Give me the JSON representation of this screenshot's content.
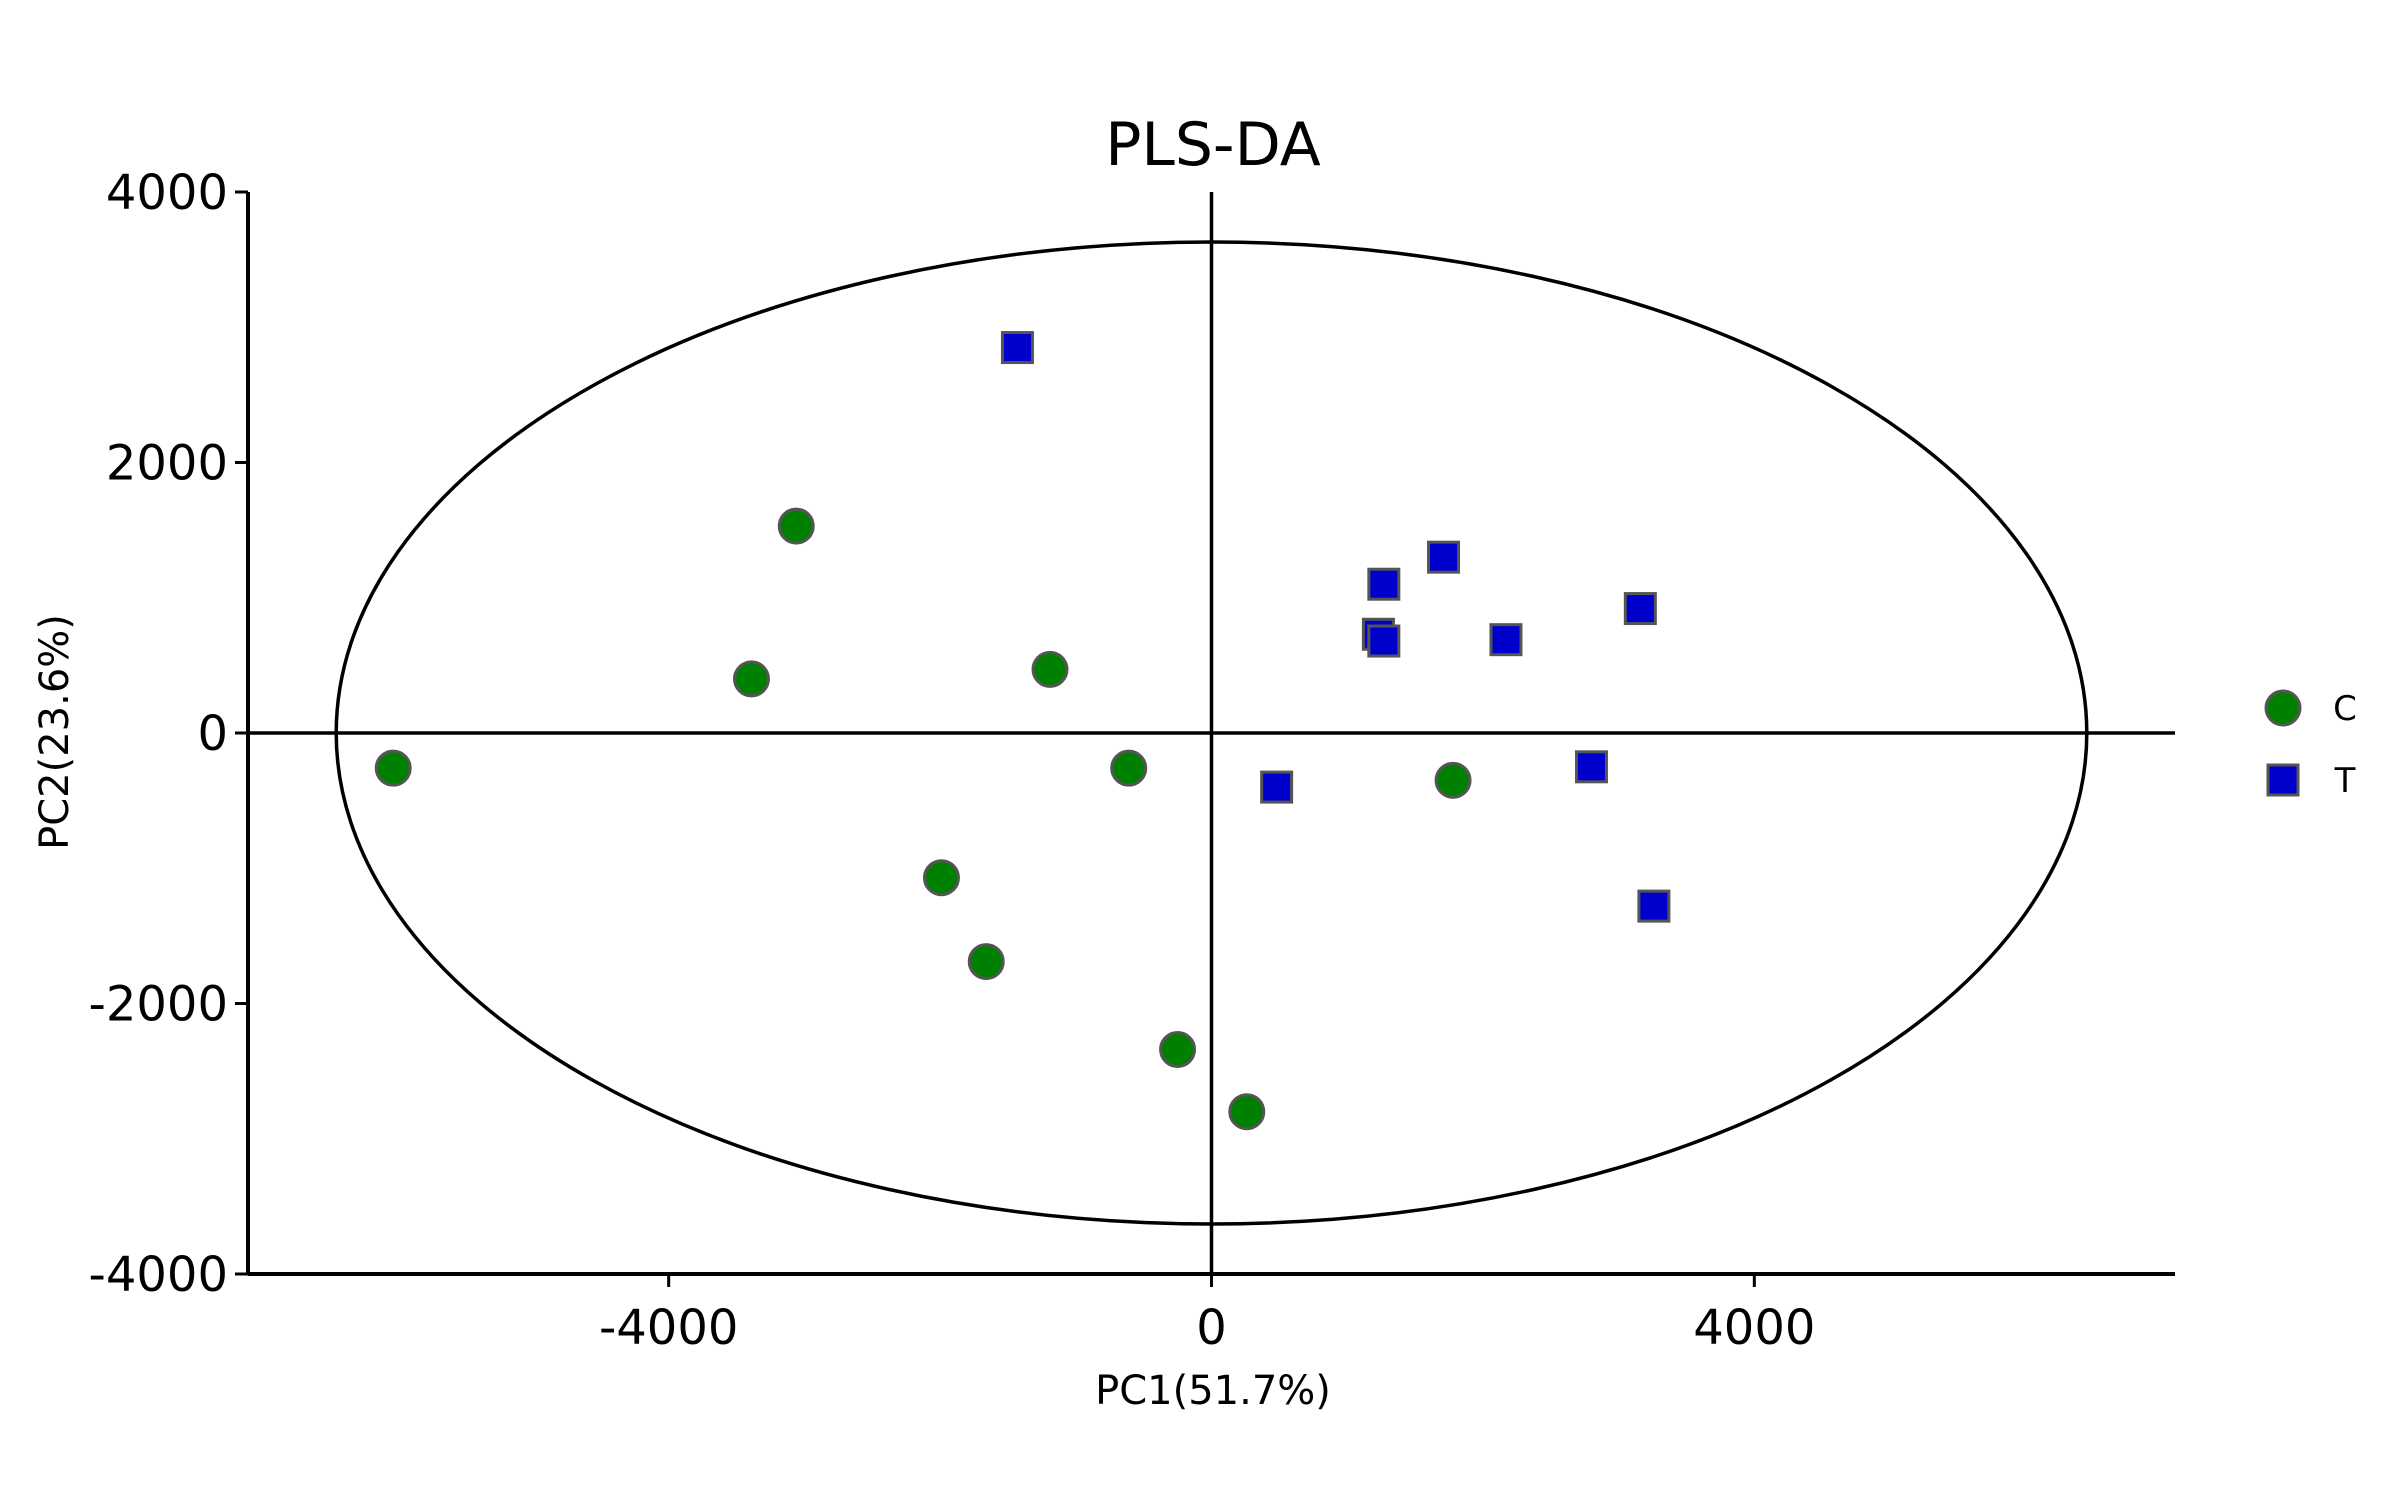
{
  "chart_data": {
    "type": "scatter",
    "title": "PLS-DA",
    "xlabel": "PC1(51.7%)",
    "ylabel": "PC2(23.6%)",
    "xlim": [
      -7100,
      7100
    ],
    "ylim": [
      -4000,
      4000
    ],
    "xticks": [
      -4000,
      0,
      4000
    ],
    "xtick_labels": [
      "-4000",
      "0",
      "4000"
    ],
    "yticks": [
      -4000,
      -2000,
      0,
      2000,
      4000
    ],
    "ytick_labels": [
      "-4000",
      "-2000",
      "0",
      "2000",
      "4000"
    ],
    "grid": false,
    "legend_position": "right",
    "ellipse": {
      "cx": 0,
      "cy": 0,
      "rx": 6450,
      "ry": 3630
    },
    "series": [
      {
        "name": "C",
        "marker": "circle",
        "color": "#008000",
        "points": [
          {
            "x": -6030,
            "y": -260
          },
          {
            "x": -3060,
            "y": 1530
          },
          {
            "x": -3390,
            "y": 400
          },
          {
            "x": -1190,
            "y": 470
          },
          {
            "x": -610,
            "y": -260
          },
          {
            "x": -1990,
            "y": -1070
          },
          {
            "x": -1660,
            "y": -1690
          },
          {
            "x": -250,
            "y": -2340
          },
          {
            "x": 260,
            "y": -2800
          },
          {
            "x": 1780,
            "y": -350
          }
        ]
      },
      {
        "name": "T",
        "marker": "square",
        "color": "#0000CD",
        "points": [
          {
            "x": -1430,
            "y": 2850
          },
          {
            "x": 1710,
            "y": 1300
          },
          {
            "x": 1270,
            "y": 1100
          },
          {
            "x": 1230,
            "y": 730
          },
          {
            "x": 1270,
            "y": 680
          },
          {
            "x": 2170,
            "y": 690
          },
          {
            "x": 3160,
            "y": 920
          },
          {
            "x": 2800,
            "y": -250
          },
          {
            "x": 480,
            "y": -400
          },
          {
            "x": 3260,
            "y": -1280
          }
        ]
      }
    ]
  }
}
